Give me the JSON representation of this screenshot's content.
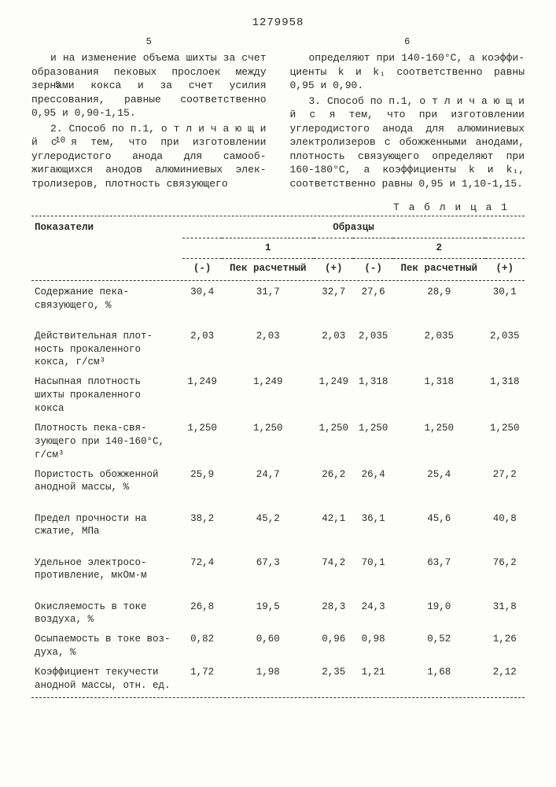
{
  "doc_number": "1279958",
  "left_col_num": "5",
  "right_col_num": "6",
  "line_5": "5",
  "line_10": "10",
  "left_text": "и на изменение объема шихты за счет образования пековых прослоек между зернами кокса и за счет усилия прессования, равные соответственно 0,95 и 0,90-1,15.",
  "left_p2_lead": "2. Способ по п.1, ",
  "left_p2_spaced": "о т л и ч а ю щ и й с я",
  "left_p2_rest": " тем, что при изготовлении углеродистого анода для самооб­жигающихся анодов алюминиевых элек­тролизеров, плотность связующего",
  "right_p1": "определяют при 140-160°С, а коэффи­циенты k и k₁ соответственно равны 0,95 и 0,90.",
  "right_p2_lead": "3. Способ по п.1, ",
  "right_p2_spaced": "о т л и ч а ю щ и й с я",
  "right_p2_rest": " тем, что при изготовле­нии углеродистого анода для алюминие­вых электролизеров с обожженными ано­дами, плотность связующего определя­ют при 160-180°С, а коэффициенты k и k₁, соответственно равны 0,95 и 1,10-1,15.",
  "table_label": "Т а б л и ц а  1",
  "hdr_показатели": "Показатели",
  "hdr_образцы": "Образцы",
  "hdr_1": "1",
  "hdr_2": "2",
  "hdr_minus": "(-)",
  "hdr_plus": "(+)",
  "hdr_пек": "Пек рас­четный",
  "rows": [
    {
      "label": "Содержание пека-связующего, %",
      "v": [
        "30,4",
        "31,7",
        "32,7",
        "27,6",
        "28,9",
        "30,1"
      ]
    },
    {
      "label": "Действительная плот­ность прокаленного кокса, г/см³",
      "v": [
        "2,03",
        "2,03",
        "2,03",
        "2,035",
        "2,035",
        "2,035"
      ]
    },
    {
      "label": "Насыпная плотность шихты прокаленного кокса",
      "v": [
        "1,249",
        "1,249",
        "1,249",
        "1,318",
        "1,318",
        "1,318"
      ]
    },
    {
      "label": "Плотность пека-свя­зующего при 140-160°С, г/см³",
      "v": [
        "1,250",
        "1,250",
        "1,250",
        "1,250",
        "1,250",
        "1,250"
      ]
    },
    {
      "label": "Пористость обожженной анодной массы, %",
      "v": [
        "25,9",
        "24,7",
        "26,2",
        "26,4",
        "25,4",
        "27,2"
      ]
    },
    {
      "label": "Предел прочности на сжатие, МПа",
      "v": [
        "38,2",
        "45,2",
        "42,1",
        "36,1",
        "45,6",
        "40,8"
      ]
    },
    {
      "label": "Удельное электросо­противление, мкОм·м",
      "v": [
        "72,4",
        "67,3",
        "74,2",
        "70,1",
        "63,7",
        "76,2"
      ]
    },
    {
      "label": "Окисляемость в токе воздуха, %",
      "v": [
        "26,8",
        "19,5",
        "28,3",
        "24,3",
        "19,0",
        "31,8"
      ]
    },
    {
      "label": "Осыпаемость в токе воз­духа, %",
      "v": [
        "0,82",
        "0,60",
        "0,96",
        "0,98",
        "0,52",
        "1,26"
      ]
    },
    {
      "label": "Коэффициент текучес­ти анодной массы, отн. ед.",
      "v": [
        "1,72",
        "1,98",
        "2,35",
        "1,21",
        "1,68",
        "2,12"
      ]
    }
  ]
}
